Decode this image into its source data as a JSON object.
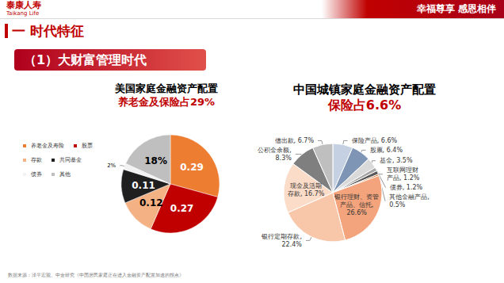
{
  "header": {
    "logo": "泰康人寿",
    "logo_en": "Taikang Life",
    "slogan": "幸福尊享 感恩相伴"
  },
  "section_title": "一 时代特征",
  "subsection_title": "（1）大财富管理时代",
  "source": "数据来源：泽平宏观、中金研究《中国居民家庭正在进入金融资产配置加速的拐点》",
  "chart_data": [
    {
      "type": "pie",
      "title": "美国家庭金融资产配置",
      "subtitle": "养老金及保险占29%",
      "categories": [
        "养老金及寿险",
        "股票",
        "存款",
        "共同基金",
        "债券",
        "其他"
      ],
      "values": [
        0.29,
        0.27,
        0.12,
        0.11,
        0.02,
        0.18
      ],
      "value_labels": [
        "0.29",
        "0.27",
        "0.12",
        "0.11",
        "2%",
        "18%"
      ],
      "colors": [
        "#ed7d31",
        "#c00000",
        "#f4b183",
        "#1f1f1f",
        "#f2f2f2",
        "#bfbfbf"
      ],
      "legend": "left",
      "data_labels": true
    },
    {
      "type": "pie",
      "title": "中国城镇家庭金融资产配置",
      "subtitle": "保险占6.6%",
      "categories": [
        "保险产品",
        "股票",
        "基金",
        "债券",
        "互联网理财产品",
        "其他金融产品",
        "银行理财、资管产品、信托",
        "银行定期存款",
        "现金及活期存款",
        "公积金余额",
        "借出款"
      ],
      "values": [
        6.6,
        6.4,
        3.5,
        1.2,
        1.2,
        0.5,
        26.6,
        22.4,
        16.7,
        8.3,
        6.7
      ],
      "value_labels": [
        "保险产品, 6.6%",
        "股票, 6.4%",
        "基金, 3.5%",
        "债券, 1.2%",
        "互联网理财\n产品, 1.2%",
        "其他金融产品,\n0.5%",
        "银行理财、资管\n产品、信托,\n26.6%",
        "银行定期存款,\n22.4%",
        "现金及活期\n存款, 16.7%",
        "公积金余额,\n8.3%",
        "借出款, 6.7%"
      ],
      "colors": [
        "#c5d0e3",
        "#7f95b5",
        "#d9d9d9",
        "#a6a6a6",
        "#595959",
        "#c55a11",
        "#f4a47c",
        "#f8c6a8",
        "#fbdcc8",
        "#7f7f7f",
        "#bfbfbf"
      ],
      "data_labels": true
    }
  ]
}
